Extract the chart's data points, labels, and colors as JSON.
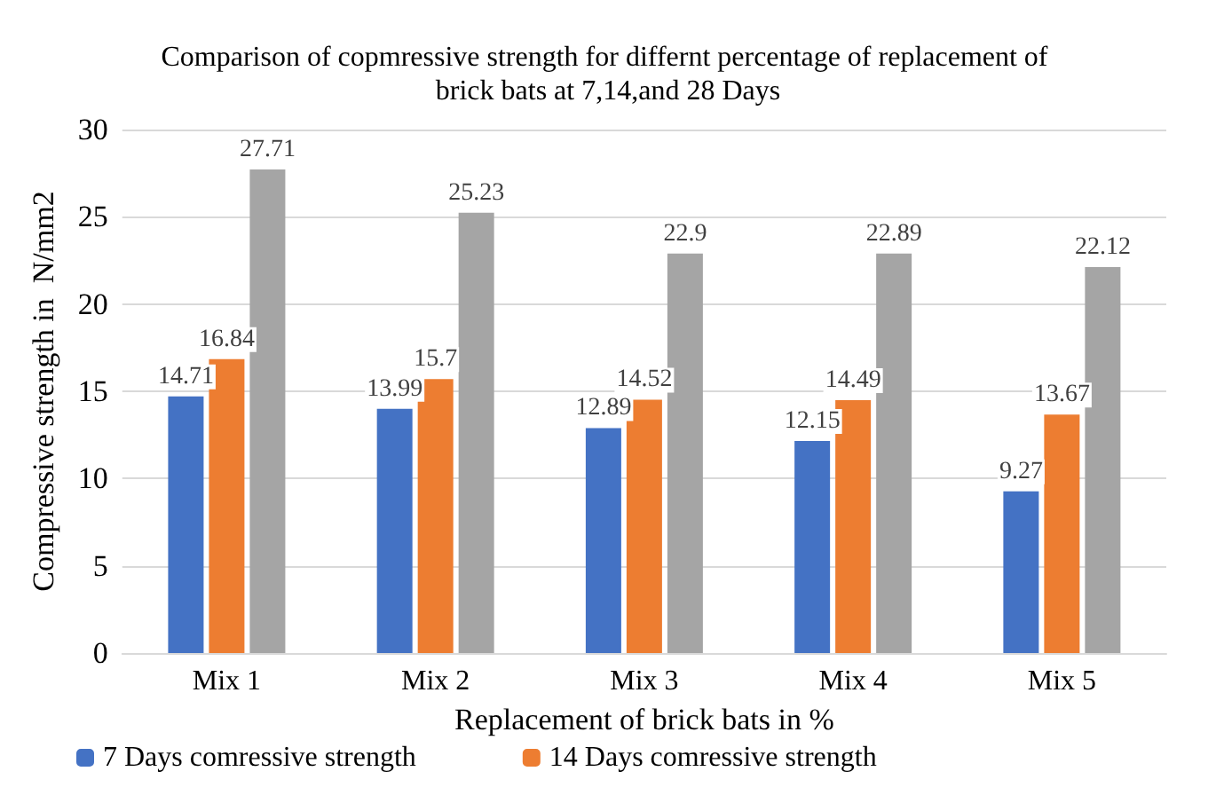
{
  "chart_data": {
    "type": "bar",
    "title": "Comparison of copmressive strength for differnt percentage of replacement of brick bats at 7,14,and 28 Days",
    "xlabel": "Replacement of brick bats in %",
    "ylabel": "Compressive strength in  N/mm2",
    "categories": [
      "Mix 1",
      "Mix 2",
      "Mix 3",
      "Mix 4",
      "Mix 5"
    ],
    "series": [
      {
        "name": "7 Days comressive strength",
        "color": "#4472c4",
        "values": [
          14.71,
          13.99,
          12.89,
          12.15,
          9.27
        ]
      },
      {
        "name": "14 Days comressive strength",
        "color": "#ed7d31",
        "values": [
          16.84,
          15.7,
          14.52,
          14.49,
          13.67
        ]
      },
      {
        "color": "#a5a5a5",
        "values": [
          27.71,
          25.23,
          22.9,
          22.89,
          22.12
        ]
      }
    ],
    "ylim": [
      0,
      30
    ],
    "yticks": [
      0,
      5,
      10,
      15,
      20,
      25,
      30
    ],
    "grid": "y",
    "legend": "bottom",
    "data_labels": true
  }
}
